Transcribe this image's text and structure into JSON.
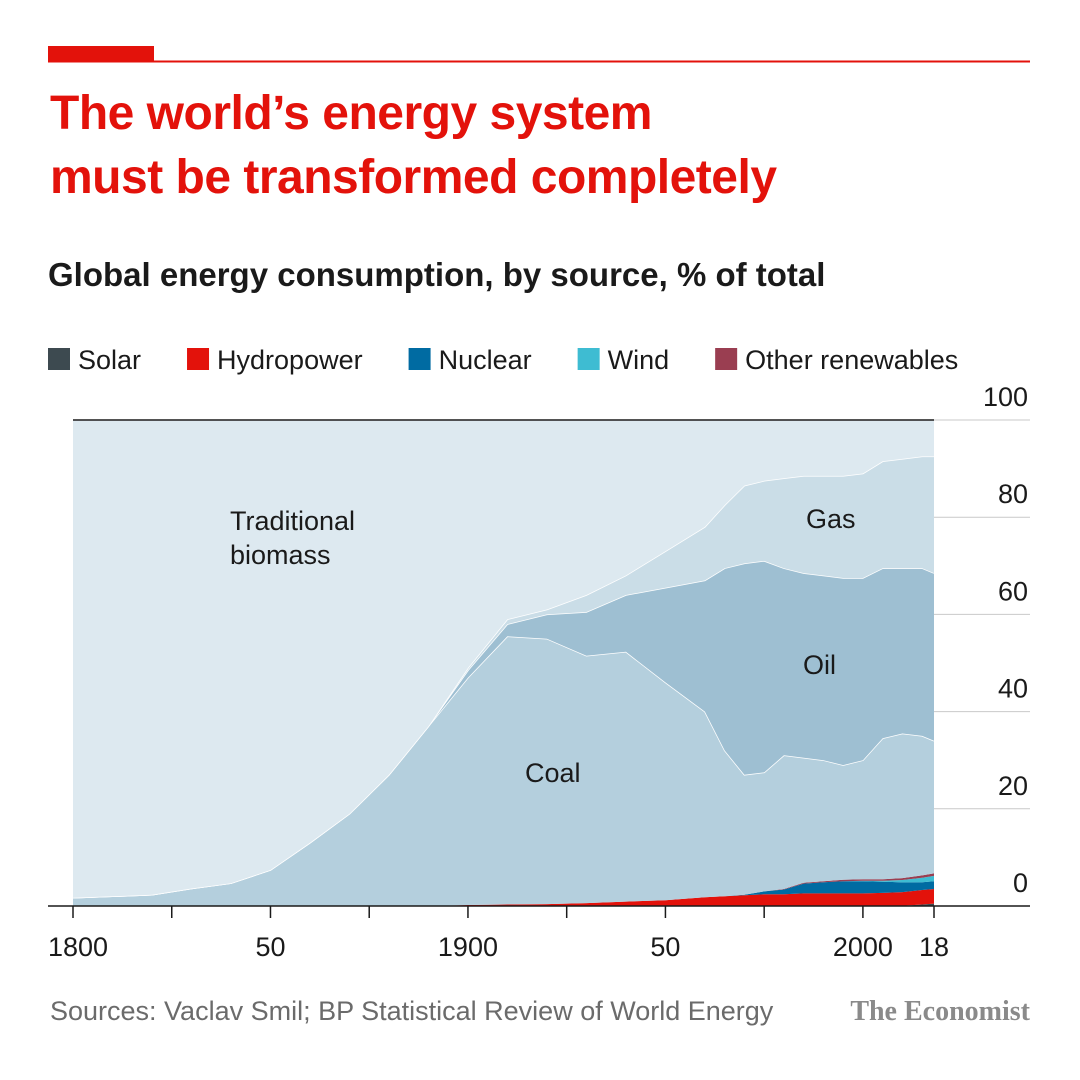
{
  "chart_data": {
    "type": "stacked_area",
    "title": "The world’s energy system\nmust be transformed completely",
    "subtitle": "Global energy consumption, by source, % of total",
    "source": "Sources: Vaclav Smil; BP Statistical Review of World Energy",
    "brand": "The Economist",
    "x": [
      1800,
      1810,
      1820,
      1830,
      1840,
      1850,
      1860,
      1870,
      1880,
      1890,
      1900,
      1910,
      1920,
      1930,
      1940,
      1950,
      1960,
      1965,
      1970,
      1975,
      1980,
      1985,
      1990,
      1995,
      2000,
      2005,
      2010,
      2015,
      2018
    ],
    "xlim": [
      1800,
      2018
    ],
    "xticks": [
      1800,
      {
        "value": 1850,
        "label": "50"
      },
      1900,
      {
        "value": 1950,
        "label": "50"
      },
      2000,
      {
        "value": 2018,
        "label": "18"
      }
    ],
    "xminor_ticks": [
      1825,
      1875,
      1925,
      1975
    ],
    "ylim": [
      0,
      100
    ],
    "yticks": [
      0,
      20,
      40,
      60,
      80,
      100
    ],
    "grid": true,
    "series": [
      {
        "name": "Solar",
        "color": "#3d4a50",
        "label_style": "legend",
        "values": [
          0,
          0,
          0,
          0,
          0,
          0,
          0,
          0,
          0,
          0,
          0,
          0,
          0,
          0,
          0,
          0,
          0,
          0,
          0,
          0,
          0,
          0,
          0,
          0,
          0,
          0,
          0.05,
          0.3,
          0.5
        ]
      },
      {
        "name": "Hydropower",
        "color": "#e3120b",
        "label_style": "legend",
        "values": [
          0,
          0,
          0,
          0,
          0,
          0,
          0,
          0,
          0,
          0,
          0.2,
          0.3,
          0.4,
          0.6,
          0.9,
          1.2,
          1.8,
          2.0,
          2.2,
          2.4,
          2.4,
          2.6,
          2.6,
          2.6,
          2.6,
          2.7,
          2.8,
          3.0,
          3.0
        ]
      },
      {
        "name": "Nuclear",
        "color": "#006ba2",
        "label_style": "legend",
        "values": [
          0,
          0,
          0,
          0,
          0,
          0,
          0,
          0,
          0,
          0,
          0,
          0,
          0,
          0,
          0,
          0,
          0,
          0,
          0.1,
          0.6,
          1.0,
          2.0,
          2.3,
          2.5,
          2.5,
          2.3,
          2.0,
          1.6,
          1.6
        ]
      },
      {
        "name": "Wind",
        "color": "#3ebcd2",
        "label_style": "legend",
        "values": [
          0,
          0,
          0,
          0,
          0,
          0,
          0,
          0,
          0,
          0,
          0,
          0,
          0,
          0,
          0,
          0,
          0,
          0,
          0,
          0,
          0,
          0,
          0,
          0,
          0.1,
          0.2,
          0.5,
          0.9,
          1.1
        ]
      },
      {
        "name": "Other renewables",
        "color": "#9a3e51",
        "label_style": "legend",
        "values": [
          0,
          0,
          0,
          0,
          0,
          0,
          0,
          0,
          0,
          0,
          0,
          0,
          0,
          0,
          0,
          0,
          0,
          0,
          0,
          0,
          0.1,
          0.2,
          0.2,
          0.3,
          0.3,
          0.3,
          0.4,
          0.5,
          0.5
        ]
      },
      {
        "name": "Coal",
        "color": "#b4cfdd",
        "label_style": "area",
        "values": [
          1.7,
          2.0,
          2.3,
          3.6,
          4.7,
          7.4,
          13,
          19,
          27,
          37,
          46.8,
          55.2,
          54.6,
          50.9,
          51.4,
          44.8,
          38.2,
          30,
          24.7,
          24.5,
          27.5,
          25.7,
          24.9,
          23.6,
          24.5,
          29,
          29.75,
          28.7,
          27.3
        ]
      },
      {
        "name": "Oil",
        "color": "#9ebfd2",
        "label_style": "area",
        "values": [
          0,
          0,
          0,
          0,
          0,
          0,
          0,
          0,
          0,
          0,
          1.5,
          2.5,
          5,
          9,
          11.7,
          19.5,
          27,
          37.5,
          43.5,
          43.5,
          38.5,
          38,
          38,
          38.5,
          37.5,
          35,
          34,
          34.5,
          34.5
        ]
      },
      {
        "name": "Gas",
        "color": "#cadde7",
        "label_style": "area",
        "values": [
          0,
          0,
          0,
          0,
          0,
          0,
          0,
          0,
          0,
          0,
          0.5,
          1,
          1,
          3.5,
          4,
          7.5,
          11,
          13,
          16,
          16.5,
          18.5,
          20,
          20.5,
          21,
          21.5,
          22,
          22.5,
          23,
          24
        ]
      },
      {
        "name": "Traditional biomass",
        "color": "#dde9f0",
        "label_style": "area",
        "values": [
          98.3,
          98,
          97.7,
          96.4,
          95.3,
          92.6,
          87,
          81,
          73,
          63,
          51,
          41,
          39,
          36,
          32,
          27,
          22,
          17.5,
          13.5,
          12.5,
          12,
          11.5,
          11.5,
          11.5,
          11,
          8.5,
          8,
          7.5,
          7.5
        ]
      }
    ]
  }
}
